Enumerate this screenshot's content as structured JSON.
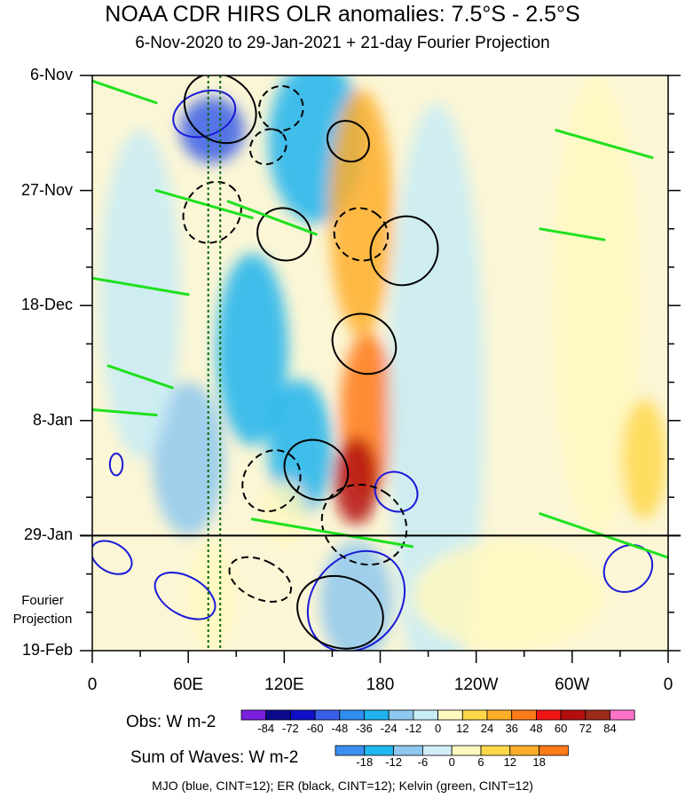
{
  "chart_data": {
    "type": "heatmap",
    "title": "NOAA CDR HIRS OLR anomalies: 7.5°S - 2.5°S",
    "subtitle": "6-Nov-2020 to 29-Jan-2021 + 21-day Fourier Projection",
    "x_ticks": [
      "0",
      "60E",
      "120E",
      "180",
      "120W",
      "60W",
      "0"
    ],
    "x_tick_values_deg_east": [
      0,
      60,
      120,
      180,
      240,
      300,
      360
    ],
    "xlim": [
      0,
      360
    ],
    "y_ticks": [
      "6-Nov",
      "27-Nov",
      "18-Dec",
      "8-Jan",
      "29-Jan",
      "19-Feb"
    ],
    "y_tick_values_days": [
      0,
      21,
      42,
      63,
      84,
      105
    ],
    "ylim": [
      0,
      105
    ],
    "projection_start_day": 84,
    "projection_label": "Fourier\nProjection",
    "reference_lines_lon": [
      72.5,
      80
    ],
    "obs_colorbar": {
      "label": "Obs: W m-2",
      "levels": [
        -84,
        -72,
        -60,
        -48,
        -36,
        -24,
        -12,
        0,
        12,
        24,
        36,
        48,
        60,
        72,
        84
      ],
      "colors": [
        "#7a1fe0",
        "#0a0a8c",
        "#1010c8",
        "#3a5ee8",
        "#2f8cf0",
        "#1fb4ee",
        "#8ec8ee",
        "#c8ecf6",
        "#fff8c0",
        "#ffd84a",
        "#ffae2a",
        "#ff7a18",
        "#f01414",
        "#b40f0f",
        "#9a2a1a",
        "#ff72c8"
      ]
    },
    "waves_colorbar": {
      "label": "Sum of Waves: W m-2",
      "levels": [
        -18,
        -12,
        -6,
        0,
        6,
        12,
        18
      ],
      "colors": [
        "#3a90f0",
        "#20b8f0",
        "#8ec8ee",
        "#d2eef8",
        "#fff8c0",
        "#ffd84a",
        "#ffae2a",
        "#ff7a18"
      ]
    },
    "waves_caption": "MJO (blue, CINT=12); ER (black, CINT=12); Kelvin (green, CINT=12)",
    "contour_colors": {
      "MJO": "#1a1ad8",
      "ER": "#000000",
      "Kelvin": "#1ee11e"
    },
    "anomaly_regions": [
      {
        "lon": 140,
        "day": 12,
        "w_lon": 60,
        "h_day": 30,
        "value": -30
      },
      {
        "lon": 75,
        "day": 10,
        "w_lon": 40,
        "h_day": 12,
        "value": -55
      },
      {
        "lon": 100,
        "day": 50,
        "w_lon": 45,
        "h_day": 35,
        "value": -25
      },
      {
        "lon": 130,
        "day": 68,
        "w_lon": 40,
        "h_day": 25,
        "value": -35
      },
      {
        "lon": 60,
        "day": 70,
        "w_lon": 45,
        "h_day": 28,
        "value": -20
      },
      {
        "lon": 120,
        "day": 80,
        "w_lon": 30,
        "h_day": 12,
        "value": 10
      },
      {
        "lon": 168,
        "day": 25,
        "w_lon": 40,
        "h_day": 45,
        "value": 25
      },
      {
        "lon": 172,
        "day": 62,
        "w_lon": 34,
        "h_day": 30,
        "value": 40
      },
      {
        "lon": 165,
        "day": 74,
        "w_lon": 28,
        "h_day": 16,
        "value": 60
      },
      {
        "lon": 215,
        "day": 60,
        "w_lon": 60,
        "h_day": 110,
        "value": -6
      },
      {
        "lon": 315,
        "day": 42,
        "w_lon": 55,
        "h_day": 84,
        "value": 10
      },
      {
        "lon": 345,
        "day": 70,
        "w_lon": 28,
        "h_day": 22,
        "value": 20
      },
      {
        "lon": 30,
        "day": 40,
        "w_lon": 50,
        "h_day": 60,
        "value": -10
      },
      {
        "lon": 165,
        "day": 96,
        "w_lon": 45,
        "h_day": 22,
        "value": -15
      },
      {
        "lon": 75,
        "day": 95,
        "w_lon": 30,
        "h_day": 20,
        "value": 8
      },
      {
        "lon": 260,
        "day": 95,
        "w_lon": 120,
        "h_day": 20,
        "value": 4
      }
    ],
    "ER_contours": [
      {
        "lon": 80,
        "day": 6,
        "r_lon": 20,
        "r_day": 7,
        "angle": -50,
        "dashed": false
      },
      {
        "lon": 118,
        "day": 6,
        "r_lon": 14,
        "r_day": 4,
        "angle": -55,
        "dashed": true
      },
      {
        "lon": 160,
        "day": 12,
        "r_lon": 12,
        "r_day": 4,
        "angle": -50,
        "dashed": false
      },
      {
        "lon": 110,
        "day": 13,
        "r_lon": 12,
        "r_day": 3,
        "angle": -40,
        "dashed": true
      },
      {
        "lon": 75,
        "day": 25,
        "r_lon": 20,
        "r_day": 5,
        "angle": -55,
        "dashed": true
      },
      {
        "lon": 120,
        "day": 29,
        "r_lon": 16,
        "r_day": 5,
        "angle": -55,
        "dashed": false
      },
      {
        "lon": 168,
        "day": 29,
        "r_lon": 16,
        "r_day": 5,
        "angle": -55,
        "dashed": true
      },
      {
        "lon": 195,
        "day": 32,
        "r_lon": 22,
        "r_day": 6,
        "angle": -55,
        "dashed": false
      },
      {
        "lon": 170,
        "day": 49,
        "r_lon": 18,
        "r_day": 6,
        "angle": -58,
        "dashed": false
      },
      {
        "lon": 140,
        "day": 72,
        "r_lon": 18,
        "r_day": 6,
        "angle": -58,
        "dashed": false
      },
      {
        "lon": 112,
        "day": 74,
        "r_lon": 20,
        "r_day": 5,
        "angle": -55,
        "dashed": true
      },
      {
        "lon": 170,
        "day": 82,
        "r_lon": 24,
        "r_day": 8,
        "angle": -58,
        "dashed": true
      },
      {
        "lon": 155,
        "day": 98,
        "r_lon": 22,
        "r_day": 8,
        "angle": -70,
        "dashed": false
      },
      {
        "lon": 105,
        "day": 92,
        "r_lon": 12,
        "r_day": 6,
        "angle": -65,
        "dashed": true
      }
    ],
    "MJO_contours": [
      {
        "lon": 70,
        "day": 7,
        "r_lon": 20,
        "r_day": 4,
        "angle": -20
      },
      {
        "lon": 165,
        "day": 96,
        "r_lon": 34,
        "r_day": 8,
        "angle": -50
      },
      {
        "lon": 190,
        "day": 76,
        "r_lon": 12,
        "r_day": 4,
        "angle": -60
      },
      {
        "lon": 58,
        "day": 95,
        "r_lon": 12,
        "r_day": 6,
        "angle": -60
      },
      {
        "lon": 12,
        "day": 88,
        "r_lon": 9,
        "r_day": 4,
        "angle": -60
      },
      {
        "lon": 335,
        "day": 90,
        "r_lon": 16,
        "r_day": 4,
        "angle": -40
      },
      {
        "lon": 15,
        "day": 71,
        "r_lon": 4,
        "r_day": 2,
        "angle": 0
      }
    ],
    "Kelvin_contours": [
      {
        "lon": 40,
        "day": 5,
        "lon2": 0,
        "day2": 1
      },
      {
        "lon": 100,
        "day": 26,
        "lon2": 40,
        "day2": 21
      },
      {
        "lon": 140,
        "day": 29,
        "lon2": 85,
        "day2": 23
      },
      {
        "lon": 60,
        "day": 40,
        "lon2": 0,
        "day2": 37
      },
      {
        "lon": 50,
        "day": 57,
        "lon2": 10,
        "day2": 53
      },
      {
        "lon": 40,
        "day": 62,
        "lon2": 0,
        "day2": 61
      },
      {
        "lon": 200,
        "day": 86,
        "lon2": 100,
        "day2": 81
      },
      {
        "lon": 360,
        "day": 88,
        "lon2": 280,
        "day2": 80
      },
      {
        "lon": 350,
        "day": 15,
        "lon2": 290,
        "day2": 10
      },
      {
        "lon": 320,
        "day": 30,
        "lon2": 280,
        "day2": 28
      }
    ]
  }
}
